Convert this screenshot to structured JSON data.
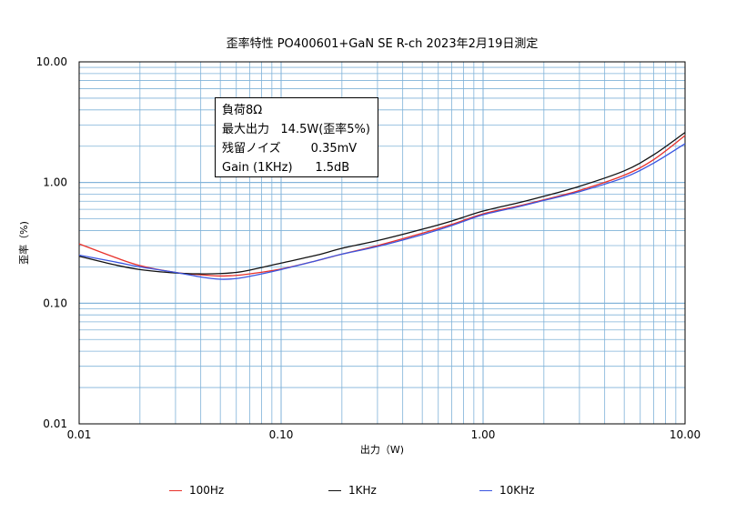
{
  "chart_data": {
    "type": "line",
    "title": "歪率特性 PO400601+GaN SE    R-ch      2023年2月19日測定",
    "xlabel": "出力（W)",
    "ylabel": "歪率（%)",
    "x_scale": "log",
    "y_scale": "log",
    "xlim": [
      0.01,
      10.0
    ],
    "ylim": [
      0.01,
      10.0
    ],
    "x_ticks": [
      "0.01",
      "0.10",
      "1.00",
      "10.00"
    ],
    "y_ticks": [
      "0.01",
      "0.10",
      "1.00",
      "10.00"
    ],
    "grid": true,
    "legend_position": "bottom",
    "annotation": [
      "負荷8Ω",
      "最大出力   14.5W(歪率5%)",
      "残留ノイズ        0.35mV",
      "Gain (1KHz)      1.5dB"
    ],
    "series": [
      {
        "name": "100Hz",
        "color": "#e8312a",
        "x": [
          0.01,
          0.015,
          0.02,
          0.03,
          0.04,
          0.05,
          0.06,
          0.07,
          0.1,
          0.15,
          0.2,
          0.3,
          0.5,
          0.7,
          1.0,
          1.5,
          2.0,
          3.0,
          5.0,
          7.0,
          10.0
        ],
        "y": [
          0.31,
          0.24,
          0.205,
          0.18,
          0.172,
          0.168,
          0.17,
          0.175,
          0.192,
          0.225,
          0.255,
          0.3,
          0.38,
          0.45,
          0.55,
          0.64,
          0.72,
          0.86,
          1.15,
          1.55,
          2.45
        ]
      },
      {
        "name": "1KHz",
        "color": "#111111",
        "x": [
          0.01,
          0.015,
          0.02,
          0.03,
          0.04,
          0.05,
          0.06,
          0.07,
          0.1,
          0.15,
          0.2,
          0.3,
          0.5,
          0.7,
          1.0,
          1.5,
          2.0,
          3.0,
          5.0,
          7.0,
          10.0
        ],
        "y": [
          0.245,
          0.208,
          0.19,
          0.178,
          0.175,
          0.176,
          0.18,
          0.188,
          0.215,
          0.25,
          0.285,
          0.33,
          0.41,
          0.48,
          0.58,
          0.68,
          0.77,
          0.93,
          1.25,
          1.7,
          2.6
        ]
      },
      {
        "name": "10KHz",
        "color": "#3a55e0",
        "x": [
          0.01,
          0.015,
          0.02,
          0.03,
          0.04,
          0.05,
          0.06,
          0.07,
          0.1,
          0.15,
          0.2,
          0.3,
          0.5,
          0.7,
          1.0,
          1.5,
          2.0,
          3.0,
          5.0,
          7.0,
          10.0
        ],
        "y": [
          0.25,
          0.22,
          0.2,
          0.18,
          0.165,
          0.158,
          0.16,
          0.167,
          0.19,
          0.225,
          0.255,
          0.295,
          0.37,
          0.44,
          0.54,
          0.63,
          0.71,
          0.84,
          1.1,
          1.45,
          2.1
        ]
      }
    ]
  }
}
